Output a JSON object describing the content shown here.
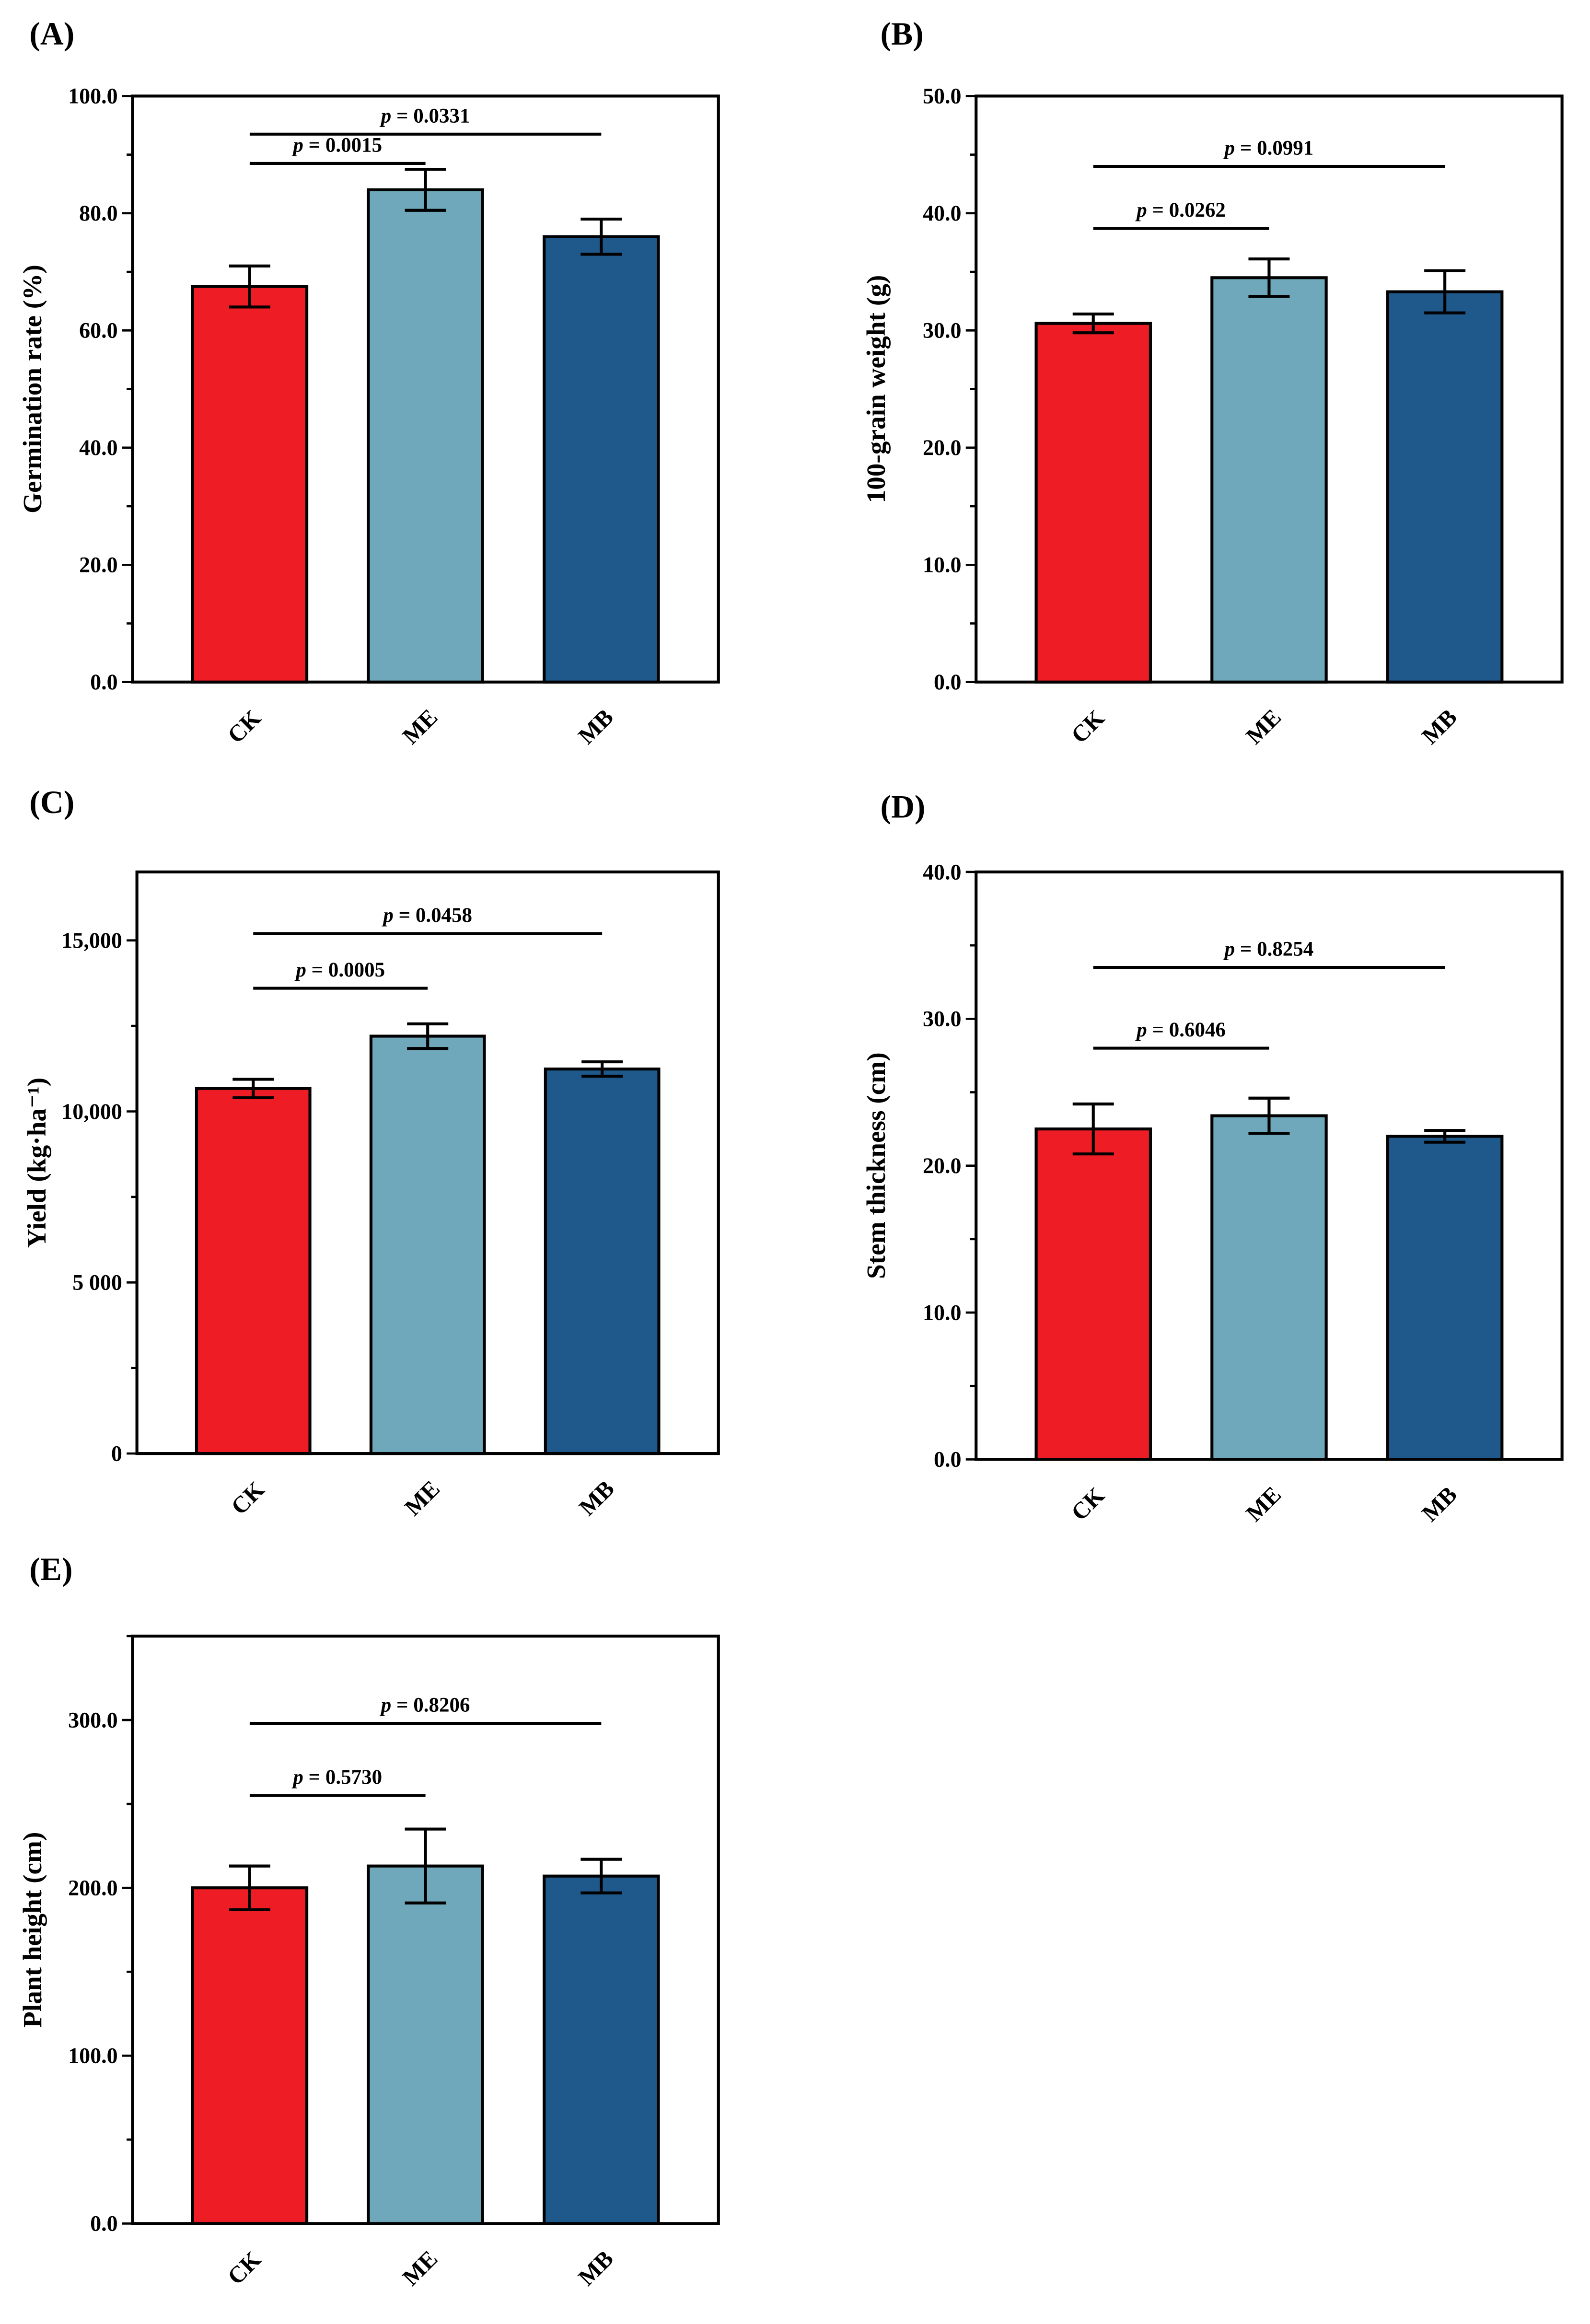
{
  "colors": {
    "CK": "#ee1c25",
    "ME": "#6fa8ba",
    "MB": "#1f598b"
  },
  "chart_data": [
    {
      "panel": "(A)",
      "type": "bar",
      "categories": [
        "CK",
        "ME",
        "MB"
      ],
      "values": [
        67.5,
        84.0,
        76.0
      ],
      "errors": [
        3.5,
        3.5,
        3.0
      ],
      "ylabel": "Germination rate (%)",
      "ylim": [
        0,
        100
      ],
      "yticks": [
        0,
        20,
        40,
        60,
        80,
        100
      ],
      "yticklabels": [
        "0.0",
        "20.0",
        "40.0",
        "60.0",
        "80.0",
        "100.0"
      ],
      "comparisons": [
        {
          "pair": [
            "CK",
            "ME"
          ],
          "label": "p = 0.0015",
          "level": 88.5
        },
        {
          "pair": [
            "CK",
            "MB"
          ],
          "label": "p = 0.0331",
          "level": 93.5
        }
      ]
    },
    {
      "panel": "(B)",
      "type": "bar",
      "categories": [
        "CK",
        "ME",
        "MB"
      ],
      "values": [
        30.6,
        34.5,
        33.3
      ],
      "errors": [
        0.8,
        1.6,
        1.8
      ],
      "ylabel": "100-grain weight (g)",
      "ylim": [
        0,
        50
      ],
      "yticks": [
        0,
        10,
        20,
        30,
        40,
        50
      ],
      "yticklabels": [
        "0.0",
        "10.0",
        "20.0",
        "30.0",
        "40.0",
        "50.0"
      ],
      "comparisons": [
        {
          "pair": [
            "CK",
            "ME"
          ],
          "label": "p = 0.0262",
          "level": 38.7
        },
        {
          "pair": [
            "CK",
            "MB"
          ],
          "label": "p = 0.0991",
          "level": 44.0
        }
      ]
    },
    {
      "panel": "(C)",
      "type": "bar",
      "categories": [
        "CK",
        "ME",
        "MB"
      ],
      "values": [
        10670,
        12200,
        11240
      ],
      "errors": [
        270,
        360,
        210
      ],
      "ylabel": "Yield (kg·ha⁻¹)",
      "ylim": [
        0,
        17000
      ],
      "yticks": [
        0,
        5000,
        10000,
        15000
      ],
      "yticklabels": [
        "0",
        "5 000",
        "10,000",
        "15,000"
      ],
      "comparisons": [
        {
          "pair": [
            "CK",
            "ME"
          ],
          "label": "p = 0.0005",
          "level": 13600
        },
        {
          "pair": [
            "CK",
            "MB"
          ],
          "label": "p = 0.0458",
          "level": 15200
        }
      ]
    },
    {
      "panel": "(D)",
      "type": "bar",
      "categories": [
        "CK",
        "ME",
        "MB"
      ],
      "values": [
        22.5,
        23.4,
        22.0
      ],
      "errors": [
        1.7,
        1.2,
        0.4
      ],
      "ylabel": "Stem thickness (cm)",
      "ylim": [
        0,
        40
      ],
      "yticks": [
        0,
        10,
        20,
        30,
        40
      ],
      "yticklabels": [
        "0.0",
        "10.0",
        "20.0",
        "30.0",
        "40.0"
      ],
      "comparisons": [
        {
          "pair": [
            "CK",
            "ME"
          ],
          "label": "p = 0.6046",
          "level": 28.0
        },
        {
          "pair": [
            "CK",
            "MB"
          ],
          "label": "p = 0.8254",
          "level": 33.5
        }
      ]
    },
    {
      "panel": "(E)",
      "type": "bar",
      "categories": [
        "CK",
        "ME",
        "MB"
      ],
      "values": [
        200,
        213,
        207
      ],
      "errors": [
        13,
        22,
        10
      ],
      "ylabel": "Plant height (cm)",
      "ylim": [
        0,
        350
      ],
      "yticks": [
        0,
        100,
        200,
        300
      ],
      "yticklabels": [
        "0.0",
        "100.0",
        "200.0",
        "300.0"
      ],
      "comparisons": [
        {
          "pair": [
            "CK",
            "ME"
          ],
          "label": "p = 0.5730",
          "level": 255
        },
        {
          "pair": [
            "CK",
            "MB"
          ],
          "label": "p = 0.8206",
          "level": 298
        }
      ]
    }
  ]
}
